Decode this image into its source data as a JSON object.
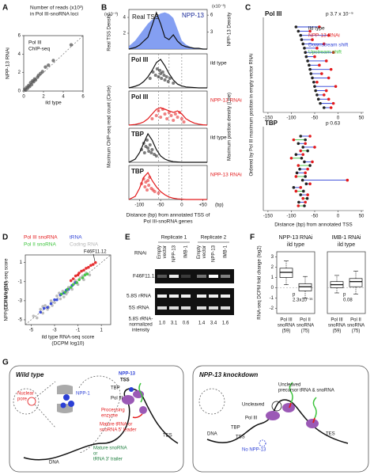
{
  "panels": {
    "A": {
      "letter": "A",
      "title": [
        "Number of reads (x10³)",
        "in Pol III-snoRNA loci"
      ],
      "legend": [
        "Pol III",
        "ChIP-seq"
      ],
      "xlabel": "ild type",
      "ylabel": "NPP-13 RNAi",
      "xlim": [
        0,
        6
      ],
      "ylim": [
        0,
        6
      ],
      "xticks": [
        0,
        2,
        4,
        6
      ],
      "yticks": [
        0,
        2,
        4,
        6
      ],
      "points": {
        "x": [
          0.1,
          0.2,
          0.3,
          0.4,
          0.5,
          0.6,
          0.7,
          0.8,
          0.9,
          1.0,
          1.1,
          1.2,
          1.4,
          1.5,
          1.7,
          1.9,
          2.2,
          2.5,
          3.0,
          4.8
        ],
        "y": [
          0.2,
          0.1,
          0.4,
          0.3,
          0.6,
          0.5,
          0.9,
          0.7,
          1.1,
          1.0,
          1.3,
          1.2,
          1.5,
          1.7,
          1.9,
          2.1,
          2.6,
          2.8,
          3.3,
          5.0
        ]
      }
    },
    "B": {
      "letter": "B",
      "xlim": [
        -125,
        60
      ],
      "xticks": [
        -100,
        -50,
        0,
        {
          "value": 50,
          "label": "+50"
        }
      ],
      "xunit": "(bp)",
      "xlabel": [
        "Distance (bp) from annotated TSS of",
        "Pol III-snoRNA genes"
      ],
      "ylabel_left": "Maximum ChIP-seq read count (Circle)",
      "ylabel_right": "Maximum position density (Line)",
      "guides": [
        -55,
        -30,
        0
      ],
      "x": [
        -125,
        -110,
        -100,
        -90,
        -80,
        -70,
        -60,
        -50,
        -40,
        -30,
        -20,
        -10,
        0,
        10,
        20,
        30,
        40,
        50,
        60
      ],
      "top": {
        "scale_left": "(x10⁻³)",
        "scale_right": "(x10⁻³)",
        "ylabel_left": "Real TSS Density",
        "ylabel_right": "NPP-13 Density",
        "real": {
          "name": "Real TSS",
          "color": "#111",
          "ylim": [
            0,
            5
          ],
          "yticks": [
            2,
            4
          ],
          "values": [
            0,
            0.2,
            0.5,
            1,
            1.5,
            3,
            4.6,
            3.2,
            1.5,
            1.2,
            1.8,
            1.0,
            0.5,
            0.3,
            0.2,
            0.1,
            0.1,
            0,
            0
          ]
        },
        "npp13": {
          "name": "NPP-13",
          "color": "#6f8ef0",
          "ylim": [
            0,
            7
          ],
          "yticks": [
            3,
            6
          ],
          "values": [
            0.5,
            1.5,
            2.5,
            3.5,
            4.5,
            5.2,
            5.8,
            6.3,
            6.5,
            6.2,
            5.5,
            3.5,
            1.5,
            0.8,
            0.4,
            0.2,
            0.1,
            0.1,
            0
          ]
        }
      },
      "subpanels": [
        {
          "label": "Pol III",
          "condition": "ild type",
          "color": "#111",
          "curve": [
            0,
            0.05,
            0.1,
            0.2,
            0.35,
            0.55,
            0.8,
            0.9,
            0.7,
            0.45,
            0.25,
            0.12,
            0.06,
            0.03,
            0.02,
            0.01,
            0,
            0,
            0
          ],
          "points": {
            "x": [
              -75,
              -68,
              -62,
              -58,
              -55,
              -52,
              -50,
              -48,
              -45,
              -42,
              -40,
              -36,
              -32,
              -28,
              -20
            ],
            "y": [
              0.3,
              0.5,
              0.4,
              0.6,
              0.35,
              0.55,
              0.45,
              0.3,
              0.5,
              0.4,
              0.25,
              0.35,
              0.2,
              0.3,
              0.15
            ]
          }
        },
        {
          "label": "Pol III",
          "condition": "NPP-13 RNAi",
          "color": "#e31a1c",
          "curve": [
            0,
            0.02,
            0.05,
            0.1,
            0.2,
            0.35,
            0.5,
            0.55,
            0.5,
            0.45,
            0.4,
            0.45,
            0.35,
            0.2,
            0.12,
            0.06,
            0.03,
            0.01,
            0
          ],
          "points": {
            "x": [
              -70,
              -60,
              -55,
              -50,
              -45,
              -40,
              -35,
              -30,
              -25,
              -20,
              -15,
              -10,
              -5,
              0,
              5
            ],
            "y": [
              0.2,
              0.3,
              0.45,
              0.25,
              0.5,
              0.35,
              0.2,
              0.4,
              0.3,
              0.15,
              0.35,
              0.25,
              0.4,
              0.2,
              0.1
            ]
          }
        },
        {
          "label": "TBP",
          "condition": "ild type",
          "color": "#111",
          "curve": [
            0,
            0.1,
            0.3,
            0.6,
            0.9,
            0.7,
            0.4,
            0.2,
            0.1,
            0.05,
            0.02,
            0.01,
            0,
            0,
            0,
            0,
            0,
            0,
            0
          ],
          "points": {
            "x": [
              -95,
              -90,
              -88,
              -85,
              -82,
              -80,
              -78,
              -75,
              -72,
              -70,
              -65,
              -60
            ],
            "y": [
              0.4,
              0.6,
              0.3,
              0.5,
              0.7,
              0.45,
              0.35,
              0.55,
              0.3,
              0.4,
              0.25,
              0.2
            ]
          }
        },
        {
          "label": "TBP",
          "condition": "NPP-13 RNAi",
          "color": "#e31a1c",
          "curve": [
            0,
            0.1,
            0.35,
            0.7,
            0.85,
            0.6,
            0.4,
            0.25,
            0.15,
            0.08,
            0.04,
            0.02,
            0.01,
            0,
            0,
            0,
            0,
            0,
            0
          ],
          "points": {
            "x": [
              -95,
              -90,
              -87,
              -85,
              -82,
              -80,
              -78,
              -76,
              -72,
              -68,
              -64,
              -55
            ],
            "y": [
              0.5,
              0.65,
              0.4,
              0.55,
              0.3,
              0.6,
              0.45,
              0.7,
              0.35,
              0.3,
              0.25,
              0.2
            ]
          }
        }
      ]
    },
    "C": {
      "letter": "C",
      "xlim": [
        -160,
        55
      ],
      "xticks": [
        -150,
        -100,
        -50,
        0,
        50
      ],
      "ylabel": "Ordered by Pol III maximum position in empty vector RNAi",
      "xlabel": "Distance (bp) from annotated TSS",
      "legend": [
        {
          "name": "ild type",
          "color": "#222"
        },
        {
          "name": "NPP-13 RNAi",
          "color": "#e31a1c"
        },
        {
          "name": "Downstream shift",
          "color": "#2b3fd6"
        },
        {
          "name": "Upstream shift",
          "color": "#3cc43c"
        }
      ],
      "groups": [
        {
          "label": "Pol III",
          "p": "p   3.7 x 10⁻⁹",
          "wt": [
            -90,
            -85,
            -80,
            -78,
            -75,
            -72,
            -70,
            -68,
            -65,
            -62,
            -60,
            -58,
            -55,
            -52,
            -50,
            -48,
            -45,
            -42,
            -38,
            -30
          ],
          "rnai": [
            -40,
            -60,
            -20,
            -55,
            -30,
            -45,
            -10,
            -50,
            -25,
            -40,
            -15,
            -35,
            -20,
            -45,
            -5,
            -25,
            -30,
            -20,
            -10,
            -15
          ]
        },
        {
          "label": "TBP",
          "p": "p   0.63",
          "wt": [
            -80,
            -70,
            -85,
            -75,
            -65,
            -90,
            -78,
            -72,
            -60,
            -82,
            -88,
            -70,
            -76,
            -68,
            -95,
            -74,
            -80,
            -66,
            -84,
            -72
          ],
          "rnai": [
            -60,
            -95,
            -70,
            -50,
            -80,
            -75,
            -100,
            -55,
            -85,
            -65,
            -70,
            -90,
            20,
            -60,
            -80,
            -90,
            -65,
            -75,
            -70,
            -85
          ]
        }
      ]
    },
    "D": {
      "letter": "D",
      "xlim": [
        -5.5,
        1.8
      ],
      "ylim": [
        -5.5,
        1.8
      ],
      "xticks": [
        -5,
        -3,
        -1,
        1
      ],
      "yticks": [
        -5,
        -3,
        -1,
        1
      ],
      "xlabel": [
        "ild type RNA-seq score",
        "(DCPM log10)"
      ],
      "ylabel": [
        "NPP-13 RNAi RNA-seq score",
        "(DCPM log10)"
      ],
      "annotation": "F46F11.12",
      "series": [
        {
          "name": "Coding RNA",
          "color": "#b5b5b5",
          "x": [
            -4.8,
            -4.5,
            -4.2,
            -4,
            -3.8,
            -3.5,
            -3.3,
            -3,
            -2.8,
            -2.5,
            -2.3,
            -2,
            -1.8,
            -1.5,
            -1.3,
            -1,
            -0.8,
            -0.5,
            -0.3,
            0,
            -4,
            -3.2,
            -2.6,
            -1.9,
            -1.2,
            -0.6,
            -3.6,
            -2.2
          ],
          "y": [
            -4.6,
            -4.8,
            -3.9,
            -4.3,
            -3.5,
            -3.7,
            -3,
            -3.2,
            -2.5,
            -2.8,
            -2,
            -2.3,
            -1.6,
            -1.8,
            -1.1,
            -1.3,
            -0.6,
            -0.8,
            -0.1,
            -0.3,
            -3.6,
            -3.5,
            -2.2,
            -2.1,
            -0.9,
            -0.4,
            -3.9,
            -2.6
          ]
        },
        {
          "name": "Pol III snoRNA",
          "color": "#e31a1c",
          "x": [
            -1.6,
            -1.4,
            -1.2,
            -1,
            -0.9,
            -0.7,
            -0.5,
            -0.3,
            -0.1,
            0.1,
            0.3,
            0.5
          ],
          "y": [
            -0.9,
            -0.7,
            -0.4,
            -0.3,
            -0.1,
            0.1,
            0.2,
            0.4,
            0.5,
            0.7,
            0.8,
            1.0
          ]
        },
        {
          "name": "tRNA",
          "color": "#2b3fd6",
          "x": [
            -4.2,
            -3.9,
            -3.6,
            -3.3,
            -3,
            -2.8,
            -2.5,
            -2.2,
            -2,
            -1.8,
            -1.5,
            -1.2
          ],
          "y": [
            -4.2,
            -3.8,
            -3.7,
            -3.3,
            -2.9,
            -2.9,
            -2.4,
            -2.2,
            -1.9,
            -1.8,
            -1.4,
            -1.1
          ]
        },
        {
          "name": "Pol II snoRNA",
          "color": "#3cc43c",
          "x": [
            -2.4,
            -2.1,
            -1.9,
            -1.6,
            -1.4,
            -1.1,
            -0.9,
            -0.6,
            -0.4,
            -0.2
          ],
          "y": [
            -2.3,
            -2.1,
            -1.8,
            -1.6,
            -1.3,
            -1.1,
            -0.8,
            -0.6,
            -0.3,
            -0.2
          ]
        }
      ]
    },
    "E": {
      "letter": "E",
      "replicates": [
        "Replicate 1",
        "Replicate 2"
      ],
      "rnai_label": "RNAi",
      "lanes": [
        [
          "Empty",
          "vector"
        ],
        [
          "NPP-13"
        ],
        [
          "IMB-1"
        ],
        [
          "Empty",
          "vector"
        ],
        [
          "NPP-13"
        ],
        [
          "IMB-1"
        ]
      ],
      "rows": [
        "F46F11.12",
        "5.8S rRNA",
        "5S rRNA"
      ],
      "intensity_label": [
        "5.8S rRNA-",
        "normalized",
        "intensity"
      ],
      "values": [
        1,
        3.1,
        0.6,
        1.4,
        3.4,
        1.6
      ],
      "value_labels": [
        "1.0",
        "3.1",
        "0.6",
        "1.4",
        "3.4",
        "1.6"
      ]
    },
    "F": {
      "letter": "F",
      "ylabel": "RNA-seq DCPM fold change (log2)",
      "ylim": [
        -2.5,
        3.5
      ],
      "yticks": [
        -2,
        -1,
        0,
        1,
        2,
        3
      ],
      "categories": [
        [
          "Pol III",
          "snoRNA",
          "(59)"
        ],
        [
          "Pol II",
          "snoRNA",
          "(75)"
        ]
      ],
      "plots": [
        {
          "title": "NPP-13 RNAi",
          "subtitle": "ild type",
          "p": [
            "p",
            "2.3x10⁻¹⁶"
          ],
          "boxes": [
            {
              "whislo": 0.3,
              "q1": 1.0,
              "med": 1.5,
              "q3": 1.9,
              "whishi": 2.6
            },
            {
              "whislo": -1.0,
              "q1": -0.3,
              "med": 0.1,
              "q3": 0.4,
              "whishi": 1.1
            }
          ]
        },
        {
          "title": "IMB-1 RNAi",
          "subtitle": "ild type",
          "p": [
            "p",
            "0.08"
          ],
          "boxes": [
            {
              "whislo": -0.5,
              "q1": 0.0,
              "med": 0.3,
              "q3": 0.6,
              "whishi": 1.2
            },
            {
              "whislo": -0.6,
              "q1": 0.1,
              "med": 0.6,
              "q3": 0.9,
              "whishi": 1.6
            }
          ]
        }
      ]
    },
    "G": {
      "letter": "G",
      "wild": {
        "title": "Wild type",
        "pore": [
          "Nuclear",
          "pore"
        ],
        "npp1": "NPP-1",
        "npp13": "NPP-13",
        "tss": "TSS",
        "tbp": "TBP",
        "pol3": "Pol III",
        "enzyme": [
          "Processing",
          "enzyme"
        ],
        "leader": [
          "Mature tRNA or",
          "snoRNA 5' leader"
        ],
        "trailer": [
          "Mature snoRNA",
          "or",
          "tRNA 3' trailer"
        ],
        "dna": "DNA",
        "tes": "TES"
      },
      "knock": {
        "title": "NPP-13 knockdown",
        "precursor": [
          "Uncleaved",
          "precursor tRNA & snoRNA"
        ],
        "uncleaved": "Uncleaved",
        "pol3": "Pol III",
        "tbp": "TBP",
        "tss": "TSS",
        "none": "No NPP-13",
        "dna": "DNA",
        "tes": "TES"
      }
    }
  }
}
